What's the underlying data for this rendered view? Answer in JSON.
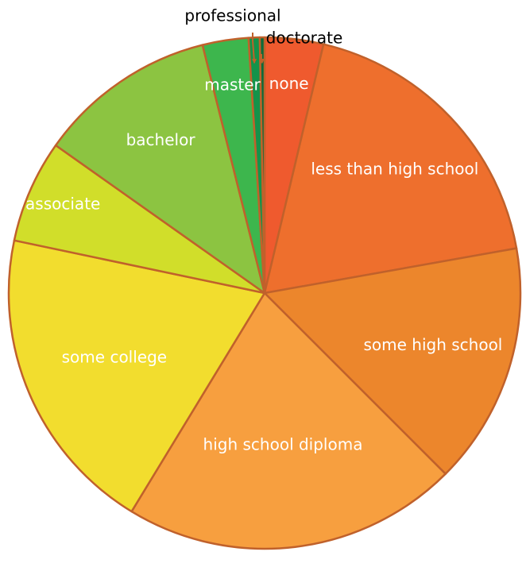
{
  "chart_data": {
    "type": "pie",
    "title": "",
    "start_angle_deg": 0,
    "direction": "clockwise",
    "border_color": "#C0612B",
    "slices": [
      {
        "label": "none",
        "value": 3.7,
        "color": "#EF5A2E",
        "label_position": "inside"
      },
      {
        "label": "less than high school",
        "value": 18.5,
        "color": "#EE6F2D",
        "label_position": "inside"
      },
      {
        "label": "some high school",
        "value": 15.3,
        "color": "#EC862C",
        "label_position": "inside"
      },
      {
        "label": "high school diploma",
        "value": 21.2,
        "color": "#F79F3F",
        "label_position": "inside"
      },
      {
        "label": "some college",
        "value": 19.6,
        "color": "#F2DD2E",
        "label_position": "inside"
      },
      {
        "label": "associate",
        "value": 6.5,
        "color": "#D1DE2A",
        "label_position": "inside"
      },
      {
        "label": "bachelor",
        "value": 11.3,
        "color": "#8CC441",
        "label_position": "inside"
      },
      {
        "label": "master",
        "value": 2.9,
        "color": "#3DB64D",
        "label_position": "inside"
      },
      {
        "label": "professional",
        "value": 0.7,
        "color": "#14934A",
        "label_position": "outside"
      },
      {
        "label": "doctorate",
        "value": 0.3,
        "color": "#0C6B3A",
        "label_position": "outside"
      }
    ]
  }
}
